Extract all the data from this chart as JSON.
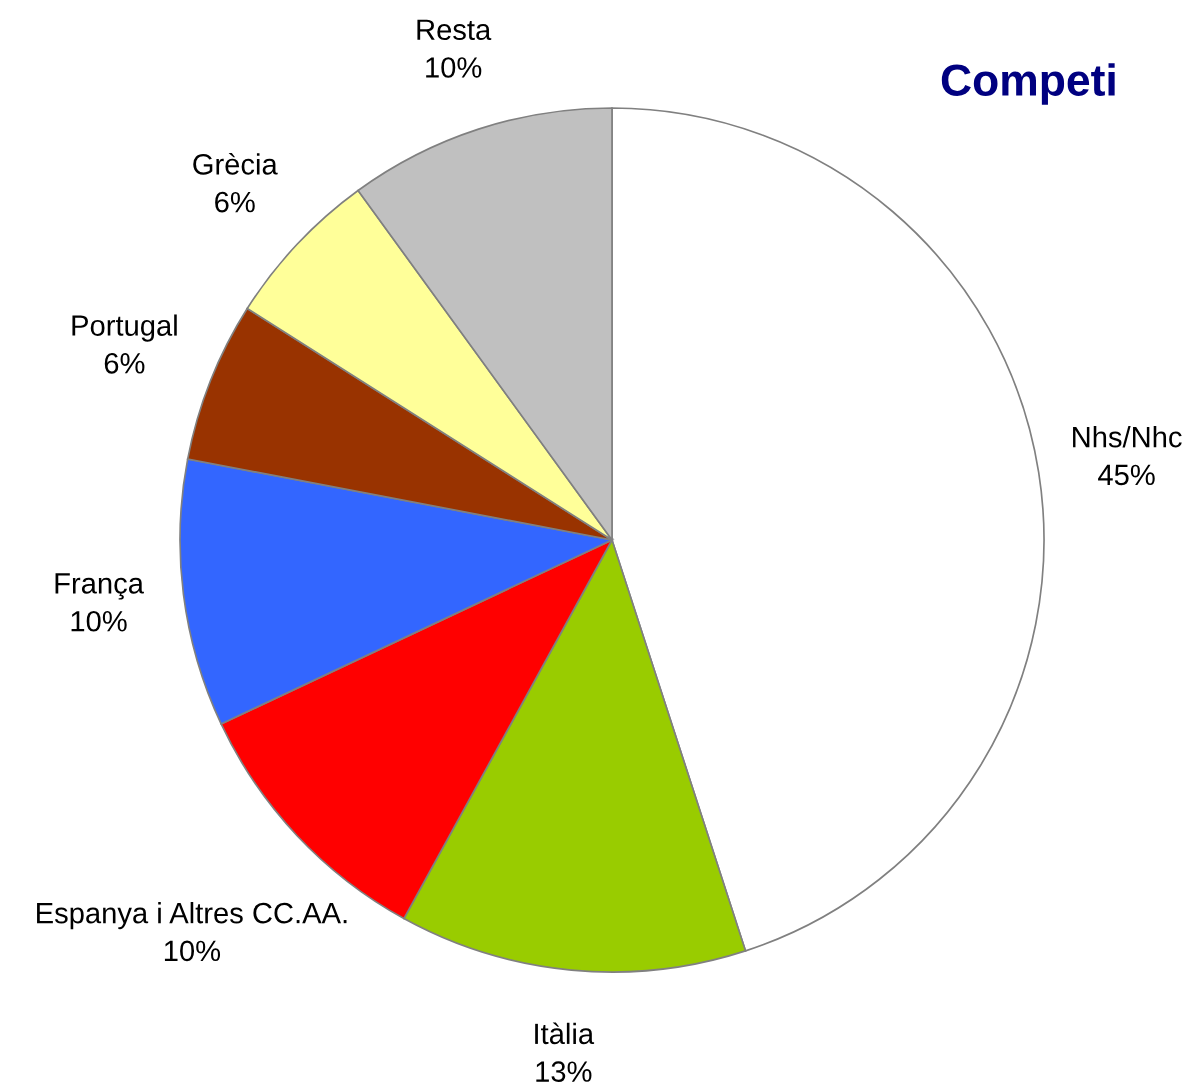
{
  "chart_data": {
    "type": "pie",
    "title": "Competi",
    "categories": [
      "Nhs/Nhc",
      "Itàlia",
      "Espanya i Altres CC.AA.",
      "França",
      "Portugal",
      "Grècia",
      "Resta"
    ],
    "values": [
      45,
      13,
      10,
      10,
      6,
      6,
      10
    ],
    "value_labels": [
      "45%",
      "13%",
      "10%",
      "10%",
      "6%",
      "6%",
      "10%"
    ],
    "colors": [
      "#ffffff",
      "#99cc00",
      "#ff0000",
      "#3366ff",
      "#993300",
      "#ffff99",
      "#c0c0c0"
    ]
  }
}
